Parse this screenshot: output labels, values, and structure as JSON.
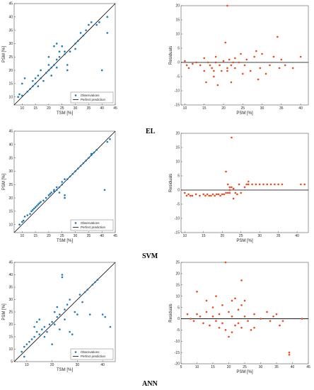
{
  "colors": {
    "scatter": "#1f77b4",
    "residual": "#e8491d",
    "line": "#000000",
    "frame": "#555555"
  },
  "chart_data": [
    {
      "type": "scatter",
      "model": "EL",
      "panel": "scatter",
      "xlabel": "TSM [%]",
      "ylabel": "PSM [%]",
      "xlim": [
        7,
        45
      ],
      "ylim": [
        7,
        45
      ],
      "xticks": [
        10,
        15,
        20,
        25,
        30,
        35,
        40,
        45
      ],
      "yticks": [
        10,
        15,
        20,
        25,
        30,
        35,
        40,
        45
      ],
      "legend": [
        "Observations",
        "Perfect prediction"
      ],
      "points": [
        [
          8.5,
          10
        ],
        [
          9,
          11
        ],
        [
          10,
          10.5
        ],
        [
          10,
          15
        ],
        [
          11,
          17
        ],
        [
          12,
          12
        ],
        [
          13,
          13
        ],
        [
          14,
          14
        ],
        [
          14,
          16
        ],
        [
          15,
          15
        ],
        [
          15,
          17
        ],
        [
          16,
          18
        ],
        [
          16,
          14
        ],
        [
          17,
          20
        ],
        [
          17,
          17
        ],
        [
          18,
          16
        ],
        [
          19,
          19
        ],
        [
          20,
          20
        ],
        [
          20,
          22
        ],
        [
          20,
          25
        ],
        [
          21,
          18
        ],
        [
          21,
          21
        ],
        [
          22,
          22
        ],
        [
          22,
          29
        ],
        [
          23,
          21
        ],
        [
          23,
          24
        ],
        [
          23,
          30
        ],
        [
          24,
          25
        ],
        [
          24,
          27
        ],
        [
          25,
          29
        ],
        [
          26,
          26
        ],
        [
          26,
          27
        ],
        [
          27,
          22
        ],
        [
          27,
          20
        ],
        [
          28,
          27
        ],
        [
          30,
          30
        ],
        [
          30,
          28
        ],
        [
          31,
          31
        ],
        [
          32,
          34
        ],
        [
          33,
          33
        ],
        [
          34,
          35
        ],
        [
          35,
          37
        ],
        [
          36,
          38
        ],
        [
          38,
          37
        ],
        [
          39,
          38
        ],
        [
          40,
          20
        ],
        [
          42,
          40
        ],
        [
          42,
          34
        ]
      ]
    },
    {
      "type": "scatter",
      "model": "EL",
      "panel": "residuals",
      "xlabel": "PSM [%]",
      "ylabel": "Residuals",
      "xlim": [
        9,
        42
      ],
      "ylim": [
        -15,
        20
      ],
      "xticks": [
        10,
        15,
        20,
        25,
        30,
        35,
        40
      ],
      "yticks": [
        -15,
        -10,
        -5,
        0,
        5,
        10,
        15,
        20
      ],
      "points": [
        [
          10,
          0.5
        ],
        [
          10.5,
          -1
        ],
        [
          11,
          -2
        ],
        [
          12,
          -0.5
        ],
        [
          13,
          0
        ],
        [
          14,
          -1
        ],
        [
          15,
          -3
        ],
        [
          15,
          1.5
        ],
        [
          15.5,
          -7
        ],
        [
          16,
          0
        ],
        [
          16.5,
          -1
        ],
        [
          17,
          -2
        ],
        [
          17.5,
          -3
        ],
        [
          17.5,
          -5
        ],
        [
          18,
          0
        ],
        [
          18,
          2
        ],
        [
          18.5,
          -8
        ],
        [
          19,
          -1
        ],
        [
          19.5,
          -3
        ],
        [
          20,
          0.5
        ],
        [
          20.5,
          7
        ],
        [
          21,
          -2
        ],
        [
          21,
          -3
        ],
        [
          21,
          20
        ],
        [
          21.5,
          1
        ],
        [
          22,
          -1
        ],
        [
          22,
          -7
        ],
        [
          22.5,
          0
        ],
        [
          23,
          1.5
        ],
        [
          23,
          -2
        ],
        [
          24,
          0
        ],
        [
          24.5,
          3
        ],
        [
          25,
          -4
        ],
        [
          25.5,
          -1
        ],
        [
          26,
          1
        ],
        [
          27,
          -3
        ],
        [
          28,
          2
        ],
        [
          28.5,
          4
        ],
        [
          29,
          -6
        ],
        [
          29.5,
          -2
        ],
        [
          30,
          3
        ],
        [
          31,
          -4
        ],
        [
          32,
          -1
        ],
        [
          33,
          2
        ],
        [
          34,
          9
        ],
        [
          34.5,
          -2
        ],
        [
          35,
          1
        ],
        [
          36,
          -1
        ],
        [
          38,
          -2
        ],
        [
          40,
          2
        ]
      ]
    },
    {
      "type": "scatter",
      "model": "SVM",
      "panel": "scatter",
      "xlabel": "TSM [%]",
      "ylabel": "PSM [%]",
      "xlim": [
        7,
        45
      ],
      "ylim": [
        7,
        45
      ],
      "xticks": [
        10,
        15,
        20,
        25,
        30,
        35,
        40,
        45
      ],
      "yticks": [
        10,
        15,
        20,
        25,
        30,
        35,
        40,
        45
      ],
      "legend": [
        "Observations",
        "Perfect prediction"
      ],
      "points": [
        [
          9,
          10
        ],
        [
          10,
          11
        ],
        [
          10.5,
          11.5
        ],
        [
          11,
          13
        ],
        [
          12,
          13.5
        ],
        [
          13,
          14
        ],
        [
          13.5,
          15
        ],
        [
          14,
          15.5
        ],
        [
          14.5,
          16
        ],
        [
          15,
          16.5
        ],
        [
          15.5,
          17
        ],
        [
          16,
          17.5
        ],
        [
          16.5,
          18
        ],
        [
          17,
          18.5
        ],
        [
          18,
          19
        ],
        [
          19,
          20
        ],
        [
          20,
          21
        ],
        [
          20.5,
          21.5
        ],
        [
          21,
          22
        ],
        [
          22,
          22.5
        ],
        [
          22,
          23
        ],
        [
          23,
          23
        ],
        [
          23,
          24
        ],
        [
          24,
          24
        ],
        [
          24,
          22
        ],
        [
          25,
          25
        ],
        [
          25,
          26
        ],
        [
          26,
          20
        ],
        [
          26,
          21
        ],
        [
          26,
          27
        ],
        [
          27,
          27
        ],
        [
          28,
          28
        ],
        [
          29,
          29
        ],
        [
          30,
          30
        ],
        [
          31,
          31
        ],
        [
          32,
          32
        ],
        [
          33,
          33
        ],
        [
          34,
          34
        ],
        [
          35,
          35
        ],
        [
          36,
          36
        ],
        [
          36,
          36.5
        ],
        [
          37,
          37
        ],
        [
          38,
          38
        ],
        [
          41,
          23
        ],
        [
          42,
          41
        ],
        [
          43,
          42
        ]
      ]
    },
    {
      "type": "scatter",
      "model": "SVM",
      "panel": "residuals",
      "xlabel": "PSM [%]",
      "ylabel": "Residuals",
      "xlim": [
        9,
        43
      ],
      "ylim": [
        -15,
        20
      ],
      "xticks": [
        10,
        15,
        20,
        25,
        30,
        35,
        40
      ],
      "yticks": [
        -15,
        -10,
        -5,
        0,
        5,
        10,
        15,
        20
      ],
      "points": [
        [
          10,
          -1
        ],
        [
          10.5,
          -2
        ],
        [
          11,
          -1.5
        ],
        [
          11.5,
          -2
        ],
        [
          12,
          -2
        ],
        [
          13,
          -1.5
        ],
        [
          14,
          -2
        ],
        [
          15,
          -1.5
        ],
        [
          15.5,
          -2
        ],
        [
          16,
          -1.5
        ],
        [
          16.5,
          -2
        ],
        [
          17,
          -2
        ],
        [
          17.5,
          -1.5
        ],
        [
          18,
          -2
        ],
        [
          18.5,
          -1.5
        ],
        [
          19,
          -1.5
        ],
        [
          19.5,
          -2
        ],
        [
          20,
          -1.5
        ],
        [
          20.5,
          -1.5
        ],
        [
          21,
          -1
        ],
        [
          21,
          6.5
        ],
        [
          21.5,
          -1
        ],
        [
          21.5,
          2
        ],
        [
          22,
          0
        ],
        [
          22,
          -1
        ],
        [
          22,
          1
        ],
        [
          22.5,
          1
        ],
        [
          22.5,
          18.5
        ],
        [
          23,
          0.5
        ],
        [
          23,
          -3
        ],
        [
          23.5,
          -1
        ],
        [
          24,
          -1.5
        ],
        [
          24.5,
          2
        ],
        [
          25,
          -1
        ],
        [
          26,
          1
        ],
        [
          26.5,
          2
        ],
        [
          27,
          2
        ],
        [
          27,
          3
        ],
        [
          28,
          2
        ],
        [
          29,
          2
        ],
        [
          30,
          2
        ],
        [
          31,
          2
        ],
        [
          32,
          2
        ],
        [
          33,
          2
        ],
        [
          34,
          2
        ],
        [
          35,
          2
        ],
        [
          36,
          2
        ],
        [
          41,
          2
        ],
        [
          42,
          2
        ]
      ]
    },
    {
      "type": "scatter",
      "model": "ANN",
      "panel": "scatter",
      "xlabel": "TSM [%]",
      "ylabel": "PSM [%]",
      "xlim": [
        5,
        45
      ],
      "ylim": [
        5,
        45
      ],
      "xticks": [
        10,
        20,
        30,
        40
      ],
      "yticks": [
        5,
        10,
        15,
        20,
        25,
        30,
        35,
        40,
        45
      ],
      "legend": [
        "Observations",
        "Perfect prediction"
      ],
      "points": [
        [
          8,
          9
        ],
        [
          9,
          7
        ],
        [
          9,
          11
        ],
        [
          10,
          12
        ],
        [
          11,
          13
        ],
        [
          12,
          14
        ],
        [
          13,
          15
        ],
        [
          13,
          19
        ],
        [
          14,
          17
        ],
        [
          14,
          21
        ],
        [
          15,
          16
        ],
        [
          15,
          22
        ],
        [
          16,
          18
        ],
        [
          17,
          19
        ],
        [
          17,
          15
        ],
        [
          18,
          17
        ],
        [
          19,
          20
        ],
        [
          20,
          21
        ],
        [
          20,
          12
        ],
        [
          21,
          25
        ],
        [
          21,
          20
        ],
        [
          22,
          23
        ],
        [
          22,
          27
        ],
        [
          23,
          24
        ],
        [
          23,
          18
        ],
        [
          24,
          39
        ],
        [
          24,
          40
        ],
        [
          25,
          26
        ],
        [
          25,
          22
        ],
        [
          26,
          28
        ],
        [
          27,
          17
        ],
        [
          27,
          30
        ],
        [
          28,
          16
        ],
        [
          29,
          25
        ],
        [
          30,
          24
        ],
        [
          31,
          32
        ],
        [
          32,
          29
        ],
        [
          33,
          33
        ],
        [
          34,
          34
        ],
        [
          35,
          24
        ],
        [
          36,
          36
        ],
        [
          37,
          37
        ],
        [
          38,
          38
        ],
        [
          40,
          24
        ],
        [
          41,
          23
        ],
        [
          43,
          19
        ]
      ]
    },
    {
      "type": "scatter",
      "model": "ANN",
      "panel": "residuals",
      "xlabel": "PSM [%]",
      "ylabel": "Residuals",
      "xlim": [
        5,
        45
      ],
      "ylim": [
        -20,
        25
      ],
      "xticks": [
        5,
        10,
        15,
        20,
        25,
        30,
        35,
        40,
        45
      ],
      "yticks": [
        -20,
        -15,
        -10,
        -5,
        0,
        5,
        10,
        15,
        20,
        25
      ],
      "points": [
        [
          7,
          2
        ],
        [
          8,
          0
        ],
        [
          9,
          -1
        ],
        [
          10,
          12
        ],
        [
          10,
          2
        ],
        [
          11,
          1
        ],
        [
          12,
          -2
        ],
        [
          13,
          8
        ],
        [
          13,
          3
        ],
        [
          14,
          -3
        ],
        [
          15,
          1
        ],
        [
          15,
          5
        ],
        [
          16,
          -1
        ],
        [
          16,
          10
        ],
        [
          17,
          2
        ],
        [
          17,
          -4
        ],
        [
          18,
          -2
        ],
        [
          18,
          6
        ],
        [
          19,
          25
        ],
        [
          19,
          -5
        ],
        [
          20,
          3
        ],
        [
          20,
          -8
        ],
        [
          21,
          8
        ],
        [
          21,
          1
        ],
        [
          21,
          -6
        ],
        [
          22,
          9
        ],
        [
          22,
          -3
        ],
        [
          23,
          4
        ],
        [
          23,
          -2
        ],
        [
          24,
          17
        ],
        [
          24,
          6
        ],
        [
          24,
          -4
        ],
        [
          25,
          8
        ],
        [
          25,
          1
        ],
        [
          26,
          -1
        ],
        [
          27,
          -5
        ],
        [
          28,
          2
        ],
        [
          28,
          -4
        ],
        [
          30,
          0
        ],
        [
          32,
          3
        ],
        [
          33,
          -1
        ],
        [
          34,
          1
        ],
        [
          35,
          2
        ],
        [
          36,
          -3
        ],
        [
          37,
          -1
        ],
        [
          39,
          -15
        ],
        [
          39,
          -16
        ],
        [
          43,
          0
        ]
      ]
    }
  ],
  "row_labels": [
    "EL",
    "SVM",
    "ANN"
  ]
}
